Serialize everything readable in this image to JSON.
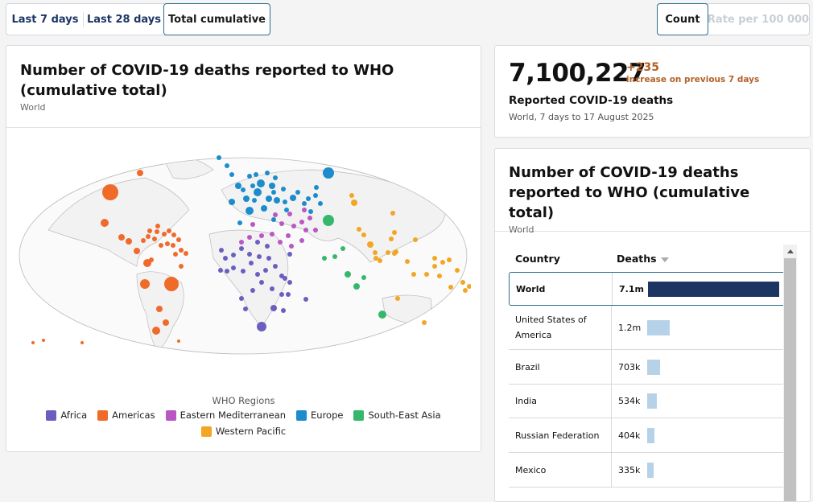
{
  "tabs_period": [
    "Last 7 days",
    "Last 28 days",
    "Total cumulative"
  ],
  "tabs_metric": [
    "Count",
    "Rate per 100 000"
  ],
  "map_card": {
    "title": "Number of COVID-19 deaths reported to WHO (cumulative total)",
    "subtitle": "World",
    "legend_title": "WHO Regions",
    "legend": [
      {
        "label": "Africa",
        "color": "#6a5fc1"
      },
      {
        "label": "Americas",
        "color": "#f06a2a"
      },
      {
        "label": "Eastern Mediterranean",
        "color": "#b957c4"
      },
      {
        "label": "Europe",
        "color": "#1c8ccc"
      },
      {
        "label": "South-East Asia",
        "color": "#35b86c"
      },
      {
        "label": "Western Pacific",
        "color": "#f2a623"
      }
    ]
  },
  "stat": {
    "value": "7,100,227",
    "change": "+235",
    "change_text": "increase on previous 7 days",
    "label": "Reported COVID-19 deaths",
    "subtitle": "World, 7 days to 17 August 2025"
  },
  "table_card": {
    "title": "Number of COVID-19 deaths reported to WHO (cumulative total)",
    "subtitle": "World",
    "col_country": "Country",
    "col_deaths": "Deaths",
    "rows": [
      {
        "country": "World",
        "deaths_label": "7.1m",
        "deaths": 7100227
      },
      {
        "country": "United States of America",
        "deaths_label": "1.2m",
        "deaths": 1200000
      },
      {
        "country": "Brazil",
        "deaths_label": "703k",
        "deaths": 703000
      },
      {
        "country": "India",
        "deaths_label": "534k",
        "deaths": 534000
      },
      {
        "country": "Russian Federation",
        "deaths_label": "404k",
        "deaths": 404000
      },
      {
        "country": "Mexico",
        "deaths_label": "335k",
        "deaths": 335000
      }
    ]
  }
}
